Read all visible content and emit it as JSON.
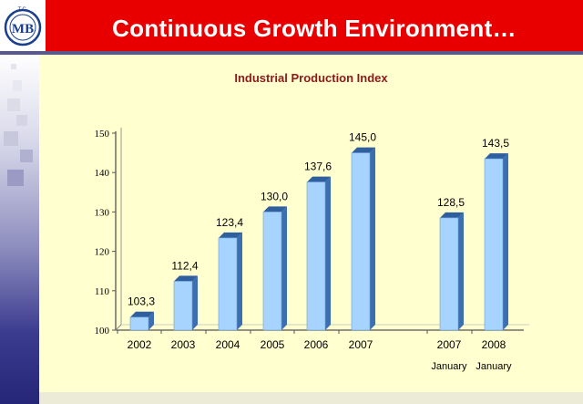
{
  "header": {
    "title": "Continuous Growth Environment…",
    "logo_text": "MB",
    "logo_caption": "T.C."
  },
  "chart_data": {
    "type": "bar",
    "title": "Industrial Production Index",
    "categories": [
      "2002",
      "2003",
      "2004",
      "2005",
      "2006",
      "2007",
      "2007",
      "2008"
    ],
    "subcategories": [
      "",
      "",
      "",
      "",
      "",
      "",
      "January",
      "January"
    ],
    "values": [
      103.3,
      112.4,
      123.4,
      130.0,
      137.6,
      145.0,
      128.5,
      143.5
    ],
    "value_labels": [
      "103,3",
      "112,4",
      "123,4",
      "130,0",
      "137,6",
      "145,0",
      "128,5",
      "143,5"
    ],
    "yticks": [
      "100",
      "110",
      "120",
      "130",
      "140",
      "150"
    ],
    "ylim": [
      100,
      150
    ],
    "xlabel": "",
    "ylabel": "",
    "grid": false,
    "legend": "none",
    "colors": {
      "bar_front": "#a6d4ff",
      "bar_side": "#3b6fb0",
      "bar_top": "#2f5f9f",
      "title": "#8b1a1a",
      "header": "#e80000",
      "background": "#ffffd0"
    }
  }
}
